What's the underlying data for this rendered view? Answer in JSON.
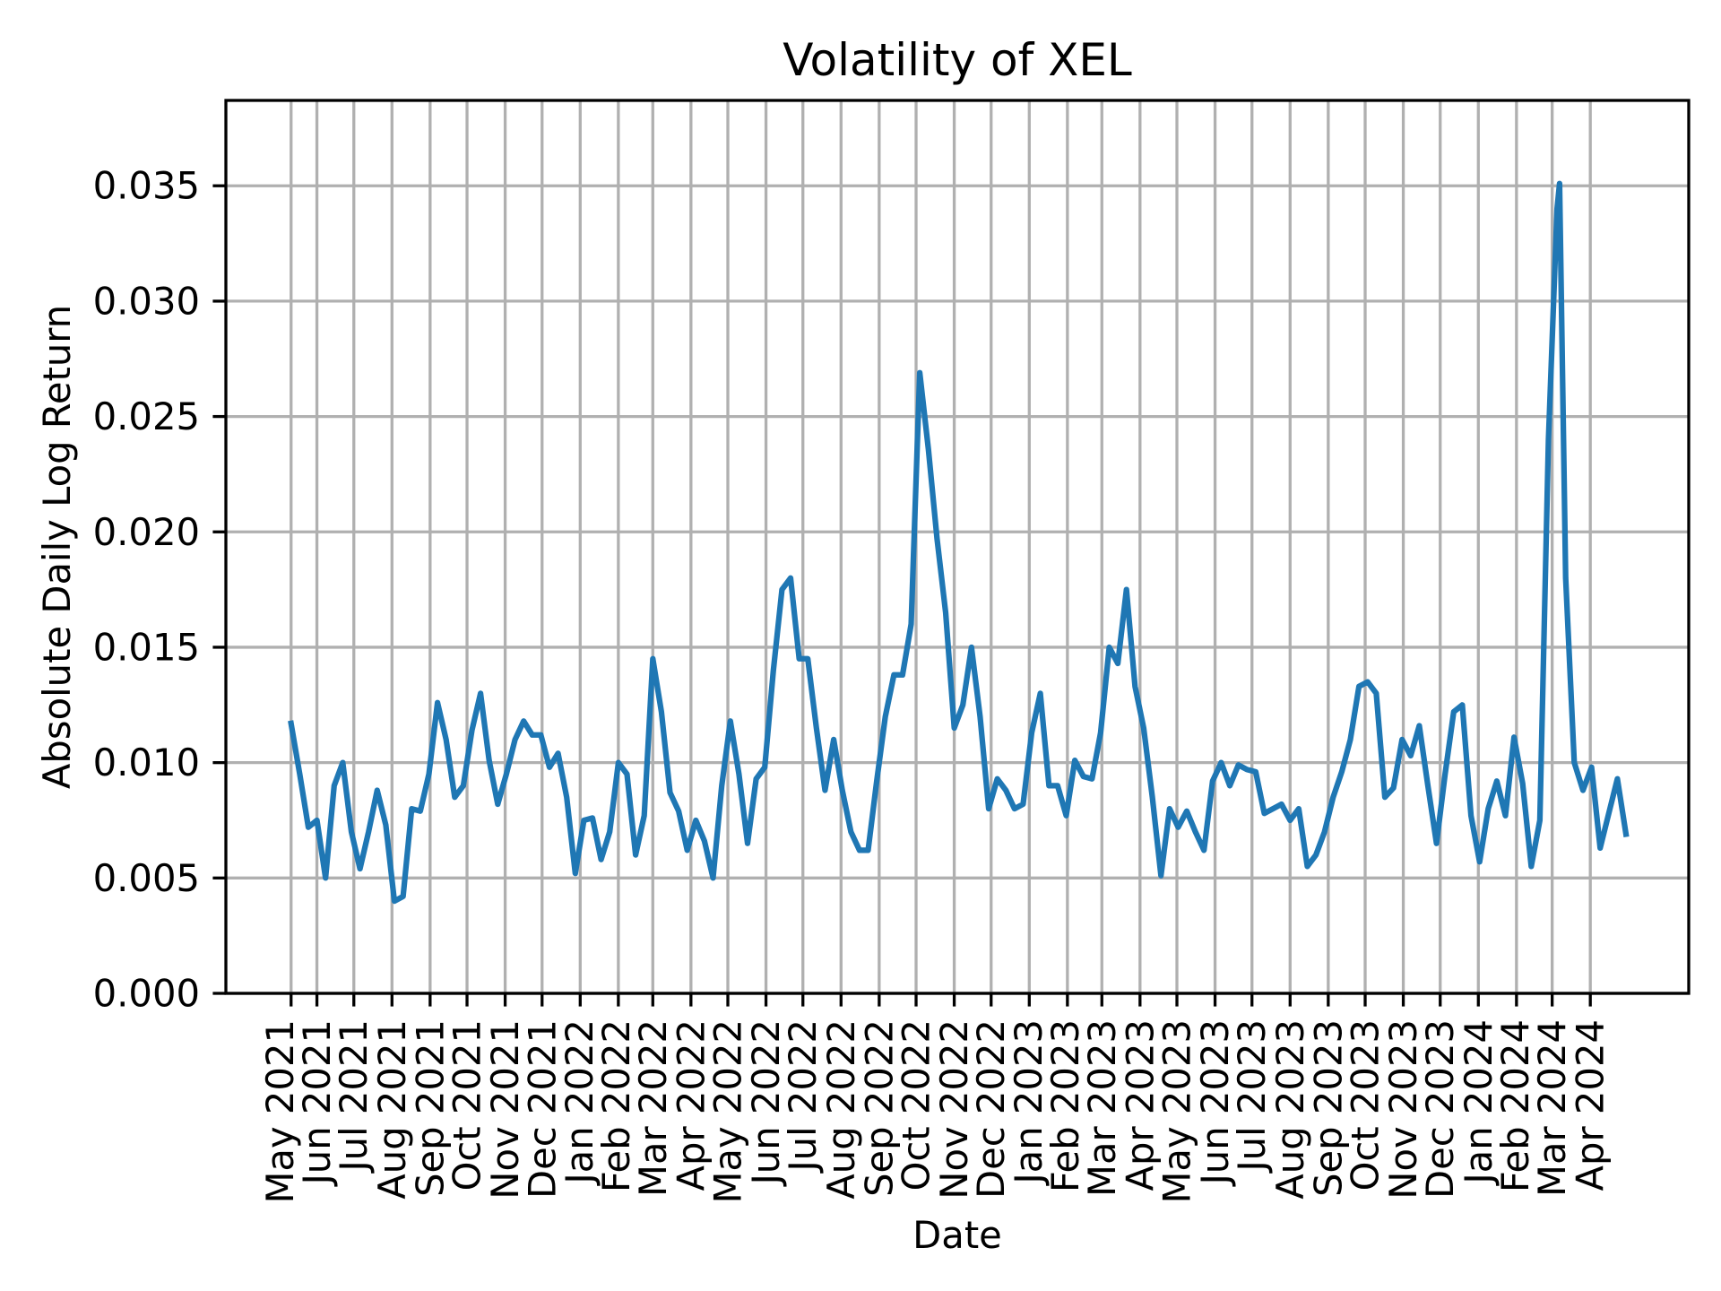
{
  "chart_data": {
    "type": "line",
    "title": "Volatility of XEL",
    "xlabel": "Date",
    "ylabel": "Absolute Daily Log Return",
    "ylim": [
      0,
      0.0387
    ],
    "xlim": [
      "2021-03-19",
      "2024-06-20"
    ],
    "grid": true,
    "color": "#1f77b4",
    "yticks": [
      {
        "value": 0.0,
        "label": "0.000"
      },
      {
        "value": 0.005,
        "label": "0.005"
      },
      {
        "value": 0.01,
        "label": "0.010"
      },
      {
        "value": 0.015,
        "label": "0.015"
      },
      {
        "value": 0.02,
        "label": "0.020"
      },
      {
        "value": 0.025,
        "label": "0.025"
      },
      {
        "value": 0.03,
        "label": "0.030"
      },
      {
        "value": 0.035,
        "label": "0.035"
      }
    ],
    "xticks": [
      {
        "date": "2021-05-11",
        "label": "May 2021"
      },
      {
        "date": "2021-06-01",
        "label": "Jun 2021"
      },
      {
        "date": "2021-07-01",
        "label": "Jul 2021"
      },
      {
        "date": "2021-08-01",
        "label": "Aug 2021"
      },
      {
        "date": "2021-09-01",
        "label": "Sep 2021"
      },
      {
        "date": "2021-10-01",
        "label": "Oct 2021"
      },
      {
        "date": "2021-11-01",
        "label": "Nov 2021"
      },
      {
        "date": "2021-12-01",
        "label": "Dec 2021"
      },
      {
        "date": "2022-01-01",
        "label": "Jan 2022"
      },
      {
        "date": "2022-02-01",
        "label": "Feb 2022"
      },
      {
        "date": "2022-03-01",
        "label": "Mar 2022"
      },
      {
        "date": "2022-04-01",
        "label": "Apr 2022"
      },
      {
        "date": "2022-05-01",
        "label": "May 2022"
      },
      {
        "date": "2022-06-01",
        "label": "Jun 2022"
      },
      {
        "date": "2022-07-01",
        "label": "Jul 2022"
      },
      {
        "date": "2022-08-01",
        "label": "Aug 2022"
      },
      {
        "date": "2022-09-01",
        "label": "Sep 2022"
      },
      {
        "date": "2022-10-01",
        "label": "Oct 2022"
      },
      {
        "date": "2022-11-01",
        "label": "Nov 2022"
      },
      {
        "date": "2022-12-01",
        "label": "Dec 2022"
      },
      {
        "date": "2023-01-01",
        "label": "Jan 2023"
      },
      {
        "date": "2023-02-01",
        "label": "Feb 2023"
      },
      {
        "date": "2023-03-01",
        "label": "Mar 2023"
      },
      {
        "date": "2023-04-01",
        "label": "Apr 2023"
      },
      {
        "date": "2023-05-01",
        "label": "May 2023"
      },
      {
        "date": "2023-06-01",
        "label": "Jun 2023"
      },
      {
        "date": "2023-07-01",
        "label": "Jul 2023"
      },
      {
        "date": "2023-08-01",
        "label": "Aug 2023"
      },
      {
        "date": "2023-09-01",
        "label": "Sep 2023"
      },
      {
        "date": "2023-10-01",
        "label": "Oct 2023"
      },
      {
        "date": "2023-11-01",
        "label": "Nov 2023"
      },
      {
        "date": "2023-12-01",
        "label": "Dec 2023"
      },
      {
        "date": "2024-01-01",
        "label": "Jan 2024"
      },
      {
        "date": "2024-02-01",
        "label": "Feb 2024"
      },
      {
        "date": "2024-03-01",
        "label": "Mar 2024"
      },
      {
        "date": "2024-04-01",
        "label": "Apr 2024"
      }
    ],
    "x": [
      "2021-05-11",
      "2021-05-18",
      "2021-05-25",
      "2021-06-01",
      "2021-06-08",
      "2021-06-15",
      "2021-06-22",
      "2021-06-29",
      "2021-07-06",
      "2021-07-13",
      "2021-07-20",
      "2021-07-27",
      "2021-08-03",
      "2021-08-10",
      "2021-08-17",
      "2021-08-24",
      "2021-08-31",
      "2021-09-07",
      "2021-09-14",
      "2021-09-21",
      "2021-09-28",
      "2021-10-05",
      "2021-10-12",
      "2021-10-19",
      "2021-10-26",
      "2021-11-02",
      "2021-11-09",
      "2021-11-16",
      "2021-11-23",
      "2021-11-30",
      "2021-12-07",
      "2021-12-14",
      "2021-12-21",
      "2021-12-28",
      "2022-01-04",
      "2022-01-11",
      "2022-01-18",
      "2022-01-25",
      "2022-02-01",
      "2022-02-08",
      "2022-02-15",
      "2022-02-22",
      "2022-03-01",
      "2022-03-08",
      "2022-03-15",
      "2022-03-22",
      "2022-03-29",
      "2022-04-05",
      "2022-04-12",
      "2022-04-19",
      "2022-04-26",
      "2022-05-03",
      "2022-05-10",
      "2022-05-17",
      "2022-05-24",
      "2022-05-31",
      "2022-06-07",
      "2022-06-14",
      "2022-06-21",
      "2022-06-28",
      "2022-07-05",
      "2022-07-12",
      "2022-07-19",
      "2022-07-26",
      "2022-08-02",
      "2022-08-09",
      "2022-08-16",
      "2022-08-23",
      "2022-08-30",
      "2022-09-06",
      "2022-09-13",
      "2022-09-20",
      "2022-09-27",
      "2022-10-04",
      "2022-10-11",
      "2022-10-18",
      "2022-10-25",
      "2022-11-01",
      "2022-11-08",
      "2022-11-15",
      "2022-11-22",
      "2022-11-29",
      "2022-12-06",
      "2022-12-13",
      "2022-12-20",
      "2022-12-27",
      "2023-01-03",
      "2023-01-10",
      "2023-01-17",
      "2023-01-24",
      "2023-01-31",
      "2023-02-07",
      "2023-02-14",
      "2023-02-21",
      "2023-02-28",
      "2023-03-07",
      "2023-03-14",
      "2023-03-21",
      "2023-03-28",
      "2023-04-04",
      "2023-04-11",
      "2023-04-18",
      "2023-04-25",
      "2023-05-02",
      "2023-05-09",
      "2023-05-16",
      "2023-05-23",
      "2023-05-30",
      "2023-06-06",
      "2023-06-13",
      "2023-06-20",
      "2023-06-27",
      "2023-07-04",
      "2023-07-11",
      "2023-07-18",
      "2023-07-25",
      "2023-08-01",
      "2023-08-08",
      "2023-08-15",
      "2023-08-22",
      "2023-08-29",
      "2023-09-05",
      "2023-09-12",
      "2023-09-19",
      "2023-09-26",
      "2023-10-03",
      "2023-10-10",
      "2023-10-17",
      "2023-10-24",
      "2023-10-31",
      "2023-11-07",
      "2023-11-14",
      "2023-11-21",
      "2023-11-28",
      "2023-12-05",
      "2023-12-12",
      "2023-12-19",
      "2023-12-26",
      "2024-01-02",
      "2024-01-09",
      "2024-01-16",
      "2024-01-23",
      "2024-01-30",
      "2024-02-06",
      "2024-02-13",
      "2024-02-20",
      "2024-02-27",
      "2024-03-05",
      "2024-03-07",
      "2024-03-12",
      "2024-03-19",
      "2024-03-26",
      "2024-04-02",
      "2024-04-09",
      "2024-04-16",
      "2024-04-23",
      "2024-04-30"
    ],
    "series": [
      {
        "values": [
          0.0117,
          0.0095,
          0.0072,
          0.0075,
          0.005,
          0.009,
          0.01,
          0.007,
          0.0054,
          0.007,
          0.0088,
          0.0073,
          0.004,
          0.0042,
          0.008,
          0.0079,
          0.0095,
          0.0126,
          0.011,
          0.0085,
          0.009,
          0.0114,
          0.013,
          0.0101,
          0.0082,
          0.0095,
          0.011,
          0.0118,
          0.0112,
          0.0112,
          0.0098,
          0.0104,
          0.0085,
          0.0052,
          0.0075,
          0.0076,
          0.0058,
          0.007,
          0.01,
          0.0095,
          0.006,
          0.0077,
          0.0145,
          0.0122,
          0.0087,
          0.0079,
          0.0062,
          0.0075,
          0.0066,
          0.005,
          0.009,
          0.0118,
          0.0095,
          0.0065,
          0.0093,
          0.0098,
          0.014,
          0.0175,
          0.018,
          0.0145,
          0.0145,
          0.0115,
          0.0088,
          0.011,
          0.0088,
          0.007,
          0.0062,
          0.0062,
          0.0092,
          0.012,
          0.0138,
          0.0138,
          0.016,
          0.0269,
          0.0236,
          0.0197,
          0.0165,
          0.0115,
          0.0125,
          0.015,
          0.012,
          0.008,
          0.0093,
          0.0088,
          0.008,
          0.0082,
          0.0113,
          0.013,
          0.009,
          0.009,
          0.0077,
          0.0101,
          0.0094,
          0.0093,
          0.0113,
          0.015,
          0.0143,
          0.0175,
          0.0133,
          0.0115,
          0.0085,
          0.0051,
          0.008,
          0.0072,
          0.0079,
          0.007,
          0.0062,
          0.0092,
          0.01,
          0.009,
          0.0099,
          0.0097,
          0.0096,
          0.0078,
          0.008,
          0.0082,
          0.0075,
          0.008,
          0.0055,
          0.006,
          0.007,
          0.0085,
          0.0096,
          0.011,
          0.0133,
          0.0135,
          0.013,
          0.0085,
          0.0089,
          0.011,
          0.0103,
          0.0116,
          0.009,
          0.0065,
          0.0095,
          0.0122,
          0.0125,
          0.0077,
          0.0057,
          0.008,
          0.0092,
          0.0077,
          0.0111,
          0.0091,
          0.0055,
          0.0075,
          0.024,
          0.034,
          0.0351,
          0.018,
          0.01,
          0.0088,
          0.0098,
          0.0063,
          0.0078,
          0.0093,
          0.0069
        ]
      }
    ]
  }
}
